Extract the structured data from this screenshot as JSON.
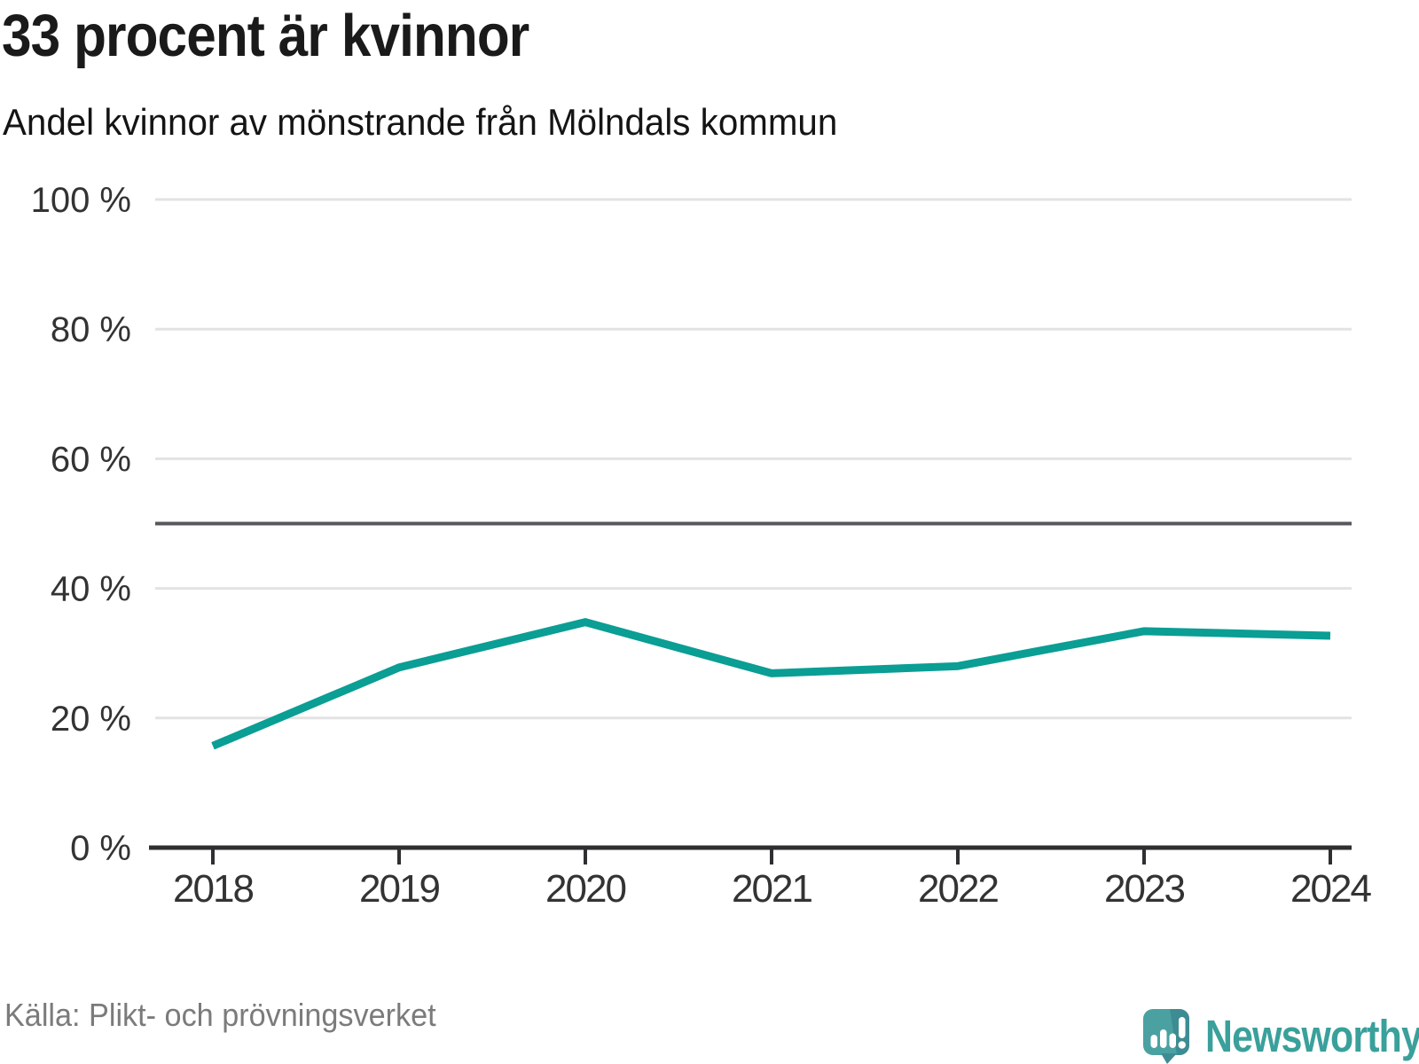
{
  "header": {
    "title": "33 procent är kvinnor",
    "subtitle": "Andel kvinnor av mönstrande från Mölndals kommun"
  },
  "chart_data": {
    "type": "line",
    "title": "33 procent är kvinnor",
    "subtitle": "Andel kvinnor av mönstrande från Mölndals kommun",
    "categories": [
      "2018",
      "2019",
      "2020",
      "2021",
      "2022",
      "2023",
      "2024"
    ],
    "series": [
      {
        "name": "Andel kvinnor av mönstrande",
        "values": [
          15.7,
          27.8,
          34.8,
          26.9,
          28.0,
          33.4,
          32.7
        ]
      }
    ],
    "xlabel": "",
    "ylabel": "",
    "ylim": [
      0,
      100
    ],
    "ytick_values": [
      0,
      20,
      40,
      60,
      80,
      100
    ],
    "ytick_labels": [
      "0 %",
      "20 %",
      "40 %",
      "60 %",
      "80 %",
      "100 %"
    ],
    "reference_line": {
      "value": 50
    },
    "grid": "horizontal",
    "legend": "none",
    "colors": {
      "line": "#0a9e94",
      "grid": "#e3e3e3",
      "reference": "#56565c",
      "axis": "#2f2f31",
      "tick_text": "#333333"
    }
  },
  "footer": {
    "source": "Källa: Plikt- och prövningsverket",
    "brand": "Newsworthy",
    "brand_color": "#3aa09b",
    "logo_icon": "newsworthy-speech-bubble-bar-chart-icon"
  }
}
